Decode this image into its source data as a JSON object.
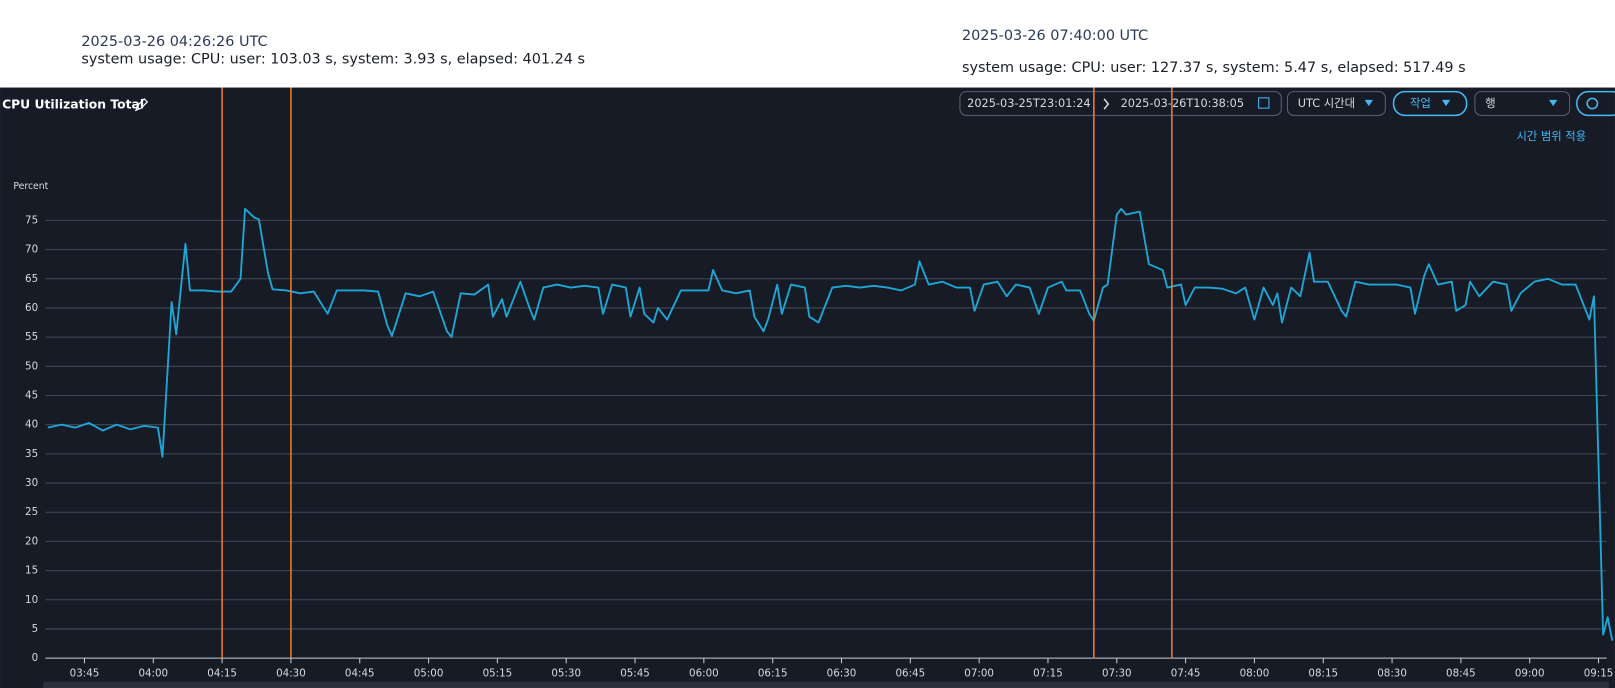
{
  "annotations": [
    {
      "time": "2025-03-26 04:26:26 UTC",
      "text": "system usage: CPU: user: 103.03 s, system: 3.93 s, elapsed: 401.24 s"
    },
    {
      "time": "2025-03-26 07:40:00 UTC",
      "text": "system usage: CPU: user: 127.37 s, system: 5.47 s, elapsed: 517.49 s"
    }
  ],
  "toolbar": {
    "start": "2025-03-25T23:01:24",
    "end": "2025-03-26T10:38:05",
    "timezone": "UTC 시간대",
    "actions": "작업",
    "view": "행",
    "apply": "시간 범위 적용"
  },
  "chart_data": {
    "type": "line",
    "title": "CPU Utilization Total",
    "y_label": "Percent",
    "color": "#1ea7d6",
    "grid": true,
    "xlim": [
      "03:36",
      "09:18"
    ],
    "xticks": [
      "03:45",
      "04:00",
      "04:15",
      "04:30",
      "04:45",
      "05:00",
      "05:15",
      "05:30",
      "05:45",
      "06:00",
      "06:15",
      "06:30",
      "06:45",
      "07:00",
      "07:15",
      "07:30",
      "07:45",
      "08:00",
      "08:15",
      "08:30",
      "08:45",
      "09:00",
      "09:15"
    ],
    "ylim": [
      0,
      80
    ],
    "yticks": [
      0,
      5,
      10,
      15,
      20,
      25,
      30,
      35,
      40,
      45,
      50,
      55,
      60,
      65,
      70,
      75
    ],
    "marker_lines": {
      "color": "#f07b2c",
      "x": [
        "04:15",
        "04:30",
        "07:25",
        "07:42"
      ]
    },
    "x": [
      "03:37",
      "03:40",
      "03:43",
      "03:46",
      "03:49",
      "03:52",
      "03:55",
      "03:58",
      "04:01",
      "04:02",
      "04:04",
      "04:05",
      "04:07",
      "04:08",
      "04:11",
      "04:14",
      "04:17",
      "04:19",
      "04:20",
      "04:22",
      "04:23",
      "04:25",
      "04:26",
      "04:29",
      "04:32",
      "04:35",
      "04:38",
      "04:40",
      "04:43",
      "04:46",
      "04:49",
      "04:51",
      "04:52",
      "04:55",
      "04:58",
      "05:01",
      "05:04",
      "05:05",
      "05:07",
      "05:10",
      "05:13",
      "05:14",
      "05:16",
      "05:17",
      "05:20",
      "05:22",
      "05:23",
      "05:25",
      "05:28",
      "05:31",
      "05:34",
      "05:37",
      "05:38",
      "05:40",
      "05:43",
      "05:44",
      "05:46",
      "05:47",
      "05:49",
      "05:50",
      "05:52",
      "05:55",
      "05:58",
      "06:01",
      "06:02",
      "06:04",
      "06:07",
      "06:10",
      "06:11",
      "06:13",
      "06:14",
      "06:16",
      "06:17",
      "06:19",
      "06:22",
      "06:23",
      "06:25",
      "06:28",
      "06:31",
      "06:34",
      "06:37",
      "06:40",
      "06:43",
      "06:46",
      "06:47",
      "06:49",
      "06:52",
      "06:55",
      "06:58",
      "06:59",
      "07:01",
      "07:04",
      "07:06",
      "07:08",
      "07:11",
      "07:13",
      "07:15",
      "07:18",
      "07:19",
      "07:22",
      "07:24",
      "07:25",
      "07:27",
      "07:28",
      "07:30",
      "07:31",
      "07:32",
      "07:35",
      "07:37",
      "07:40",
      "07:41",
      "07:44",
      "07:45",
      "07:47",
      "07:50",
      "07:53",
      "07:56",
      "07:58",
      "08:00",
      "08:02",
      "08:04",
      "08:05",
      "08:06",
      "08:08",
      "08:10",
      "08:12",
      "08:13",
      "08:16",
      "08:19",
      "08:20",
      "08:22",
      "08:25",
      "08:28",
      "08:31",
      "08:34",
      "08:35",
      "08:37",
      "08:38",
      "08:40",
      "08:43",
      "08:44",
      "08:46",
      "08:47",
      "08:49",
      "08:52",
      "08:55",
      "08:56",
      "08:58",
      "09:01",
      "09:04",
      "09:07",
      "09:10",
      "09:13",
      "09:14",
      "09:16",
      "09:17",
      "09:18"
    ],
    "values": [
      39.5,
      40,
      39.5,
      40.3,
      39,
      40,
      39.2,
      39.8,
      39.5,
      34.5,
      61,
      55.5,
      71,
      63,
      63,
      62.8,
      62.8,
      65,
      77,
      75.5,
      75.2,
      66,
      63.2,
      63,
      62.5,
      62.8,
      59,
      63,
      63,
      63,
      62.8,
      57,
      55.2,
      62.5,
      62,
      62.8,
      56,
      55,
      62.5,
      62.3,
      64,
      58.5,
      61.5,
      58.5,
      64.5,
      60,
      58,
      63.5,
      64,
      63.5,
      63.8,
      63.5,
      59,
      64,
      63.5,
      58.5,
      63.5,
      59,
      57.5,
      60,
      58,
      63,
      63,
      63,
      66.5,
      63,
      62.5,
      63,
      58.5,
      56,
      58,
      64,
      59,
      64,
      63.5,
      58.5,
      57.5,
      63.5,
      63.8,
      63.5,
      63.8,
      63.5,
      63,
      64,
      68,
      64,
      64.5,
      63.5,
      63.5,
      59.5,
      64,
      64.5,
      62,
      64,
      63.5,
      59,
      63.5,
      64.5,
      63,
      63,
      59,
      57.8,
      63.5,
      64,
      76,
      77,
      76,
      76.5,
      67.5,
      66.5,
      63.5,
      64,
      60.5,
      63.5,
      63.5,
      63.3,
      62.5,
      63.5,
      58,
      63.5,
      60.5,
      62.5,
      57.5,
      63.5,
      62,
      69.5,
      64.5,
      64.5,
      59.5,
      58.5,
      64.5,
      64,
      64,
      64,
      63.5,
      59,
      65.5,
      67.5,
      64,
      64.5,
      59.5,
      60.5,
      64.5,
      62,
      64.5,
      64,
      59.5,
      62.5,
      64.5,
      65,
      64,
      64,
      58,
      62,
      4,
      7,
      3
    ]
  }
}
